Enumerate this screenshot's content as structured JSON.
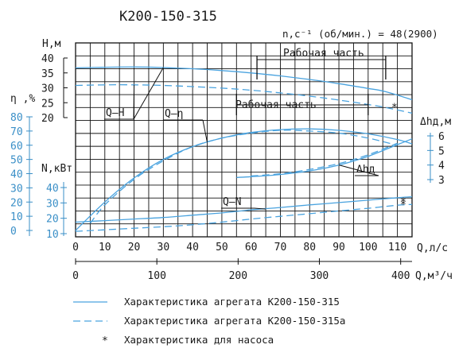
{
  "chart_data": {
    "type": "line",
    "title": "К200-150-315",
    "speed_label": "n,c⁻¹ (об/мин.) = 48(2900)",
    "working_range_label": "Рабочая часть",
    "working_range_q": [
      62,
      106
    ],
    "working_range_q_eff": [
      55,
      100
    ],
    "x_axes": {
      "q_ls": {
        "label": "Q,л/с",
        "range": [
          0,
          115
        ],
        "ticks": [
          0,
          10,
          20,
          30,
          40,
          50,
          60,
          70,
          80,
          90,
          100,
          110
        ]
      },
      "q_m3h": {
        "label": "Q,м³/ч",
        "range": [
          0,
          414
        ],
        "ticks": [
          0,
          100,
          200,
          300,
          400
        ]
      }
    },
    "y_axes": {
      "head": {
        "label": "Н,м",
        "range": [
          20,
          40
        ],
        "ticks": [
          20,
          25,
          30,
          35,
          40
        ]
      },
      "efficiency": {
        "label": "η ,%",
        "range": [
          0,
          80
        ],
        "ticks": [
          0,
          10,
          20,
          30,
          40,
          50,
          60,
          70,
          80
        ]
      },
      "power": {
        "label": "N,кВт",
        "range": [
          10,
          40
        ],
        "ticks": [
          10,
          20,
          30,
          40
        ]
      },
      "npsh": {
        "label": "Δhд,м",
        "range": [
          3,
          6
        ],
        "ticks": [
          3,
          4,
          5,
          6
        ]
      }
    },
    "curve_labels": {
      "head": "Q–H",
      "efficiency": "Q–η",
      "power": "Q–N",
      "npsh": "Δhд"
    },
    "series": [
      {
        "curve": "head",
        "style": "solid",
        "axis": "head",
        "x": [
          0,
          10,
          20,
          30,
          40,
          50,
          60,
          70,
          80,
          90,
          100,
          106,
          115
        ],
        "y": [
          36.7,
          36.9,
          37,
          36.8,
          36.4,
          35.8,
          35,
          34,
          32.8,
          31.4,
          29.8,
          28.7,
          26
        ]
      },
      {
        "curve": "head",
        "style": "dashed",
        "axis": "head",
        "x": [
          0,
          10,
          20,
          30,
          40,
          50,
          60,
          70,
          80,
          90,
          100,
          106,
          115
        ],
        "y": [
          30.8,
          31,
          31,
          30.8,
          30.4,
          29.9,
          29.2,
          28.3,
          27.2,
          25.9,
          24.4,
          23.4,
          21.5
        ]
      },
      {
        "curve": "efficiency",
        "style": "solid",
        "axis": "efficiency",
        "x": [
          0,
          10,
          20,
          30,
          40,
          50,
          60,
          70,
          80,
          90,
          100,
          110,
          115
        ],
        "y": [
          0,
          20,
          37,
          50,
          59,
          65,
          69,
          71,
          71.5,
          70.5,
          68,
          64,
          61
        ]
      },
      {
        "curve": "efficiency",
        "style": "dashed",
        "axis": "efficiency",
        "x": [
          5,
          10,
          20,
          30,
          40,
          50,
          60,
          70,
          80,
          90,
          100,
          110
        ],
        "y": [
          5,
          18,
          36,
          49,
          59,
          65,
          68.5,
          70.5,
          70,
          68.5,
          65,
          60
        ]
      },
      {
        "curve": "power",
        "style": "solid",
        "axis": "power",
        "x": [
          0,
          10,
          20,
          30,
          40,
          50,
          60,
          70,
          80,
          90,
          100,
          110,
          115
        ],
        "y": [
          17.5,
          18.5,
          19.5,
          20.5,
          22,
          23.5,
          25.5,
          27,
          28.7,
          30.2,
          31.8,
          33.4,
          34
        ]
      },
      {
        "curve": "power",
        "style": "dashed",
        "axis": "power",
        "x": [
          0,
          10,
          20,
          30,
          40,
          50,
          60,
          70,
          80,
          90,
          100,
          110,
          115
        ],
        "y": [
          11.5,
          12.5,
          13.5,
          14.5,
          15.8,
          17.5,
          19.5,
          21.3,
          23,
          24.8,
          26.5,
          28.5,
          29
        ]
      },
      {
        "curve": "npsh",
        "style": "solid",
        "axis": "npsh",
        "x": [
          55,
          60,
          70,
          80,
          90,
          100,
          110,
          115
        ],
        "y": [
          3.15,
          3.2,
          3.35,
          3.6,
          4,
          4.6,
          5.4,
          5.8
        ]
      },
      {
        "curve": "npsh",
        "style": "dashed",
        "axis": "npsh",
        "x": [
          60,
          70,
          80,
          90,
          100,
          110
        ],
        "y": [
          3.25,
          3.4,
          3.7,
          4.1,
          4.7,
          5.5
        ]
      }
    ],
    "pump_points": [
      {
        "axis": "head",
        "x": 109,
        "y": 23.3
      },
      {
        "axis": "power",
        "x": 112,
        "y": 30.5
      },
      {
        "axis": "power",
        "x": 112,
        "y": 28.5
      }
    ],
    "legend": [
      {
        "style": "solid",
        "label": "Характеристика агрегата К200-150-315"
      },
      {
        "style": "dashed",
        "label": "Характеристика агрегата К200-150-315а"
      },
      {
        "style": "star",
        "label": "Характеристика для насоса"
      }
    ],
    "colors": {
      "curve": "#4aa3df",
      "axis_blue": "#3a8fc7",
      "grid": "#111111",
      "text": "#1a1a1a"
    },
    "grid": true
  }
}
